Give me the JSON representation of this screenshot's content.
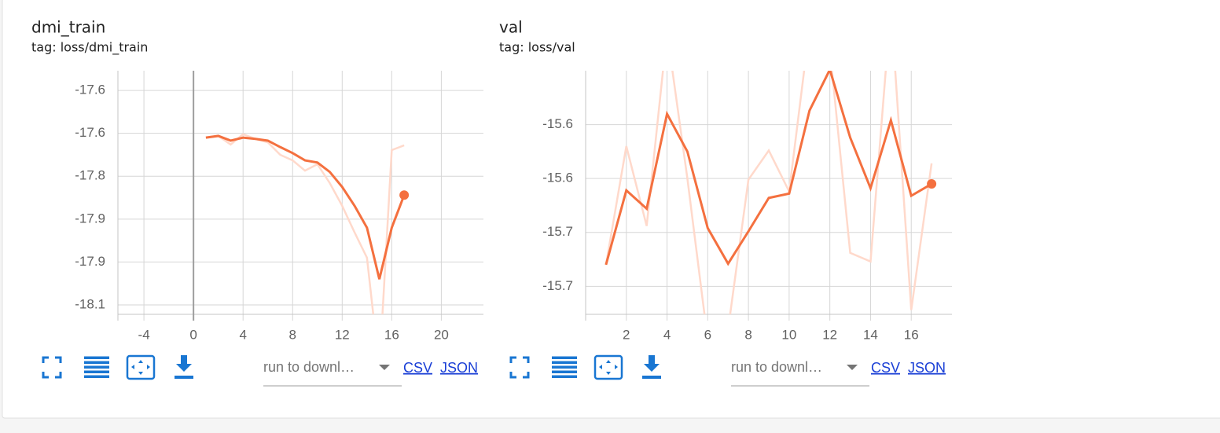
{
  "chart_data": [
    {
      "type": "line",
      "title": "dmi_train",
      "subtitle": "tag: loss/dmi_train",
      "x": [
        1,
        2,
        3,
        4,
        5,
        6,
        7,
        8,
        9,
        10,
        11,
        12,
        13,
        14,
        15,
        16,
        17
      ],
      "xlim": [
        -6.1,
        23.4
      ],
      "xticks": [
        -4,
        0,
        4,
        8,
        12,
        16,
        20
      ],
      "ylim": [
        -18.072,
        -17.504
      ],
      "yticks": [
        {
          "value": -17.55,
          "label": "-17.6"
        },
        {
          "value": -17.65,
          "label": "-17.6"
        },
        {
          "value": -17.75,
          "label": "-17.8"
        },
        {
          "value": -17.85,
          "label": "-17.9"
        },
        {
          "value": -17.95,
          "label": "-17.9"
        },
        {
          "value": -18.05,
          "label": "-18.1"
        }
      ],
      "grid": true,
      "series": [
        {
          "color": "#ffd9cb",
          "values": [
            -17.66,
            -17.656,
            -17.676,
            -17.652,
            -17.663,
            -17.671,
            -17.7,
            -17.713,
            -17.737,
            -17.722,
            -17.766,
            -17.819,
            -17.881,
            -17.94,
            -18.2,
            -17.689,
            -17.678
          ]
        },
        {
          "color": "#f4703f",
          "values": [
            -17.66,
            -17.656,
            -17.667,
            -17.66,
            -17.663,
            -17.667,
            -17.682,
            -17.696,
            -17.713,
            -17.718,
            -17.74,
            -17.775,
            -17.819,
            -17.87,
            -17.99,
            -17.87,
            -17.794
          ]
        }
      ]
    },
    {
      "type": "line",
      "title": "val",
      "subtitle": "tag: loss/val",
      "x": [
        1,
        2,
        3,
        4,
        5,
        6,
        7,
        8,
        9,
        10,
        11,
        12,
        13,
        14,
        15,
        16,
        17
      ],
      "xlim": [
        0,
        18
      ],
      "xticks": [
        2,
        4,
        6,
        8,
        10,
        12,
        14,
        16
      ],
      "ylim": [
        -15.726,
        -15.5
      ],
      "yticks": [
        {
          "value": -15.55,
          "label": "-15.6"
        },
        {
          "value": -15.6,
          "label": "-15.6"
        },
        {
          "value": -15.65,
          "label": "-15.7"
        },
        {
          "value": -15.7,
          "label": "-15.7"
        }
      ],
      "grid": true,
      "series": [
        {
          "color": "#ffd9cb",
          "values": [
            -15.68,
            -15.57,
            -15.644,
            -15.464,
            -15.6,
            -15.75,
            -15.74,
            -15.601,
            -15.574,
            -15.612,
            -15.46,
            -15.48,
            -15.669,
            -15.677,
            -15.44,
            -15.722,
            -15.586
          ]
        },
        {
          "color": "#f4703f",
          "values": [
            -15.68,
            -15.611,
            -15.628,
            -15.54,
            -15.575,
            -15.646,
            -15.679,
            -15.649,
            -15.618,
            -15.614,
            -15.537,
            -15.499,
            -15.562,
            -15.609,
            -15.546,
            -15.616,
            -15.605
          ]
        }
      ]
    }
  ],
  "controls": [
    {
      "dropdown": "run to downl…",
      "csv": "CSV",
      "json": "JSON"
    },
    {
      "dropdown": "run to downl…",
      "csv": "CSV",
      "json": "JSON"
    }
  ]
}
